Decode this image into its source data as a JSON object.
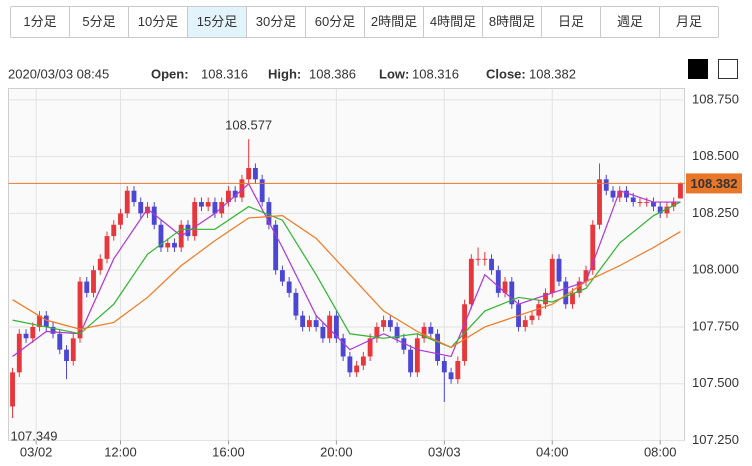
{
  "buttons": [
    "1分足",
    "5分足",
    "10分足",
    "15分足",
    "30分足",
    "60分足",
    "2時間足",
    "4時間足",
    "8時間足",
    "日足",
    "週足",
    "月足"
  ],
  "selected_button": 3,
  "header": {
    "datetime": "2020/03/03 08:45",
    "open_label": "Open:",
    "open": "108.316",
    "high_label": "High:",
    "high": "108.386",
    "low_label": "Low:",
    "low": "108.316",
    "close_label": "Close:",
    "close": "108.382"
  },
  "chart_data": {
    "type": "candlestick",
    "up_color": "#e8373c",
    "down_color": "#4b46d4",
    "open": [
      107.4,
      107.55,
      107.72,
      107.7,
      107.75,
      107.8,
      107.75,
      107.72,
      107.65,
      107.6,
      107.7,
      107.95,
      107.9,
      108.0,
      108.05,
      108.15,
      108.2,
      108.25,
      108.35,
      108.3,
      108.25,
      108.28,
      108.2,
      108.1,
      108.12,
      108.1,
      108.2,
      108.15,
      108.3,
      108.28,
      108.3,
      108.25,
      108.3,
      108.35,
      108.32,
      108.4,
      108.45,
      108.4,
      108.3,
      108.2,
      108.0,
      107.95,
      107.9,
      107.8,
      107.75,
      107.78,
      107.75,
      107.7,
      107.8,
      107.7,
      107.62,
      107.55,
      107.58,
      107.62,
      107.7,
      107.75,
      107.78,
      107.75,
      107.7,
      107.65,
      107.55,
      107.7,
      107.75,
      107.72,
      107.6,
      107.55,
      107.52,
      107.6,
      107.85,
      108.05,
      108.05,
      108.05,
      108.0,
      107.9,
      107.95,
      107.85,
      107.75,
      107.78,
      107.8,
      107.85,
      107.9,
      108.05,
      107.95,
      107.85,
      107.9,
      107.95,
      108.0,
      108.2,
      108.4,
      108.35,
      108.32,
      108.35,
      108.32,
      108.3,
      108.3,
      108.3,
      108.28,
      108.25,
      108.28,
      108.316
    ],
    "high": [
      107.57,
      107.74,
      107.74,
      107.77,
      107.82,
      107.82,
      107.77,
      107.74,
      107.67,
      107.72,
      107.97,
      107.97,
      108.02,
      108.07,
      108.17,
      108.22,
      108.27,
      108.37,
      108.37,
      108.32,
      108.3,
      108.3,
      108.22,
      108.14,
      108.14,
      108.22,
      108.22,
      108.32,
      108.32,
      108.32,
      108.32,
      108.32,
      108.37,
      108.37,
      108.42,
      108.577,
      108.47,
      108.42,
      108.32,
      108.22,
      108.02,
      107.97,
      107.92,
      107.82,
      107.8,
      107.8,
      107.77,
      107.82,
      107.82,
      107.72,
      107.64,
      107.6,
      107.64,
      107.72,
      107.77,
      107.8,
      107.8,
      107.77,
      107.72,
      107.67,
      107.72,
      107.77,
      107.77,
      107.74,
      107.62,
      107.57,
      107.62,
      107.87,
      108.07,
      108.1,
      108.08,
      108.07,
      108.02,
      107.97,
      107.97,
      107.87,
      107.8,
      107.82,
      107.87,
      107.92,
      108.07,
      108.07,
      107.97,
      107.92,
      107.97,
      108.02,
      108.22,
      108.47,
      108.42,
      108.37,
      108.37,
      108.37,
      108.34,
      108.32,
      108.32,
      108.32,
      108.3,
      108.3,
      108.32,
      108.386
    ],
    "low": [
      107.349,
      107.53,
      107.68,
      107.68,
      107.73,
      107.73,
      107.7,
      107.63,
      107.52,
      107.58,
      107.68,
      107.88,
      107.88,
      107.98,
      108.03,
      108.13,
      108.18,
      108.23,
      108.28,
      108.23,
      108.23,
      108.18,
      108.08,
      108.08,
      108.08,
      108.08,
      108.13,
      108.13,
      108.26,
      108.26,
      108.23,
      108.23,
      108.28,
      108.3,
      108.3,
      108.38,
      108.38,
      108.28,
      108.18,
      107.98,
      107.93,
      107.88,
      107.78,
      107.73,
      107.73,
      107.73,
      107.68,
      107.68,
      107.68,
      107.6,
      107.53,
      107.53,
      107.56,
      107.6,
      107.68,
      107.73,
      107.73,
      107.68,
      107.63,
      107.53,
      107.53,
      107.68,
      107.7,
      107.58,
      107.42,
      107.5,
      107.5,
      107.58,
      107.83,
      108.02,
      108.02,
      107.98,
      107.88,
      107.88,
      107.83,
      107.73,
      107.73,
      107.76,
      107.78,
      107.83,
      107.88,
      107.93,
      107.83,
      107.83,
      107.88,
      107.93,
      107.98,
      108.18,
      108.33,
      108.3,
      108.3,
      108.3,
      108.28,
      108.28,
      108.28,
      108.26,
      108.23,
      108.23,
      108.26,
      108.316
    ],
    "close": [
      107.55,
      107.72,
      107.7,
      107.75,
      107.8,
      107.75,
      107.72,
      107.65,
      107.6,
      107.7,
      107.95,
      107.9,
      108.0,
      108.05,
      108.15,
      108.2,
      108.25,
      108.35,
      108.3,
      108.25,
      108.28,
      108.2,
      108.1,
      108.12,
      108.1,
      108.2,
      108.15,
      108.3,
      108.28,
      108.3,
      108.25,
      108.3,
      108.35,
      108.32,
      108.4,
      108.45,
      108.4,
      108.3,
      108.2,
      108.0,
      107.95,
      107.9,
      107.8,
      107.75,
      107.78,
      107.75,
      107.7,
      107.8,
      107.7,
      107.62,
      107.55,
      107.58,
      107.62,
      107.7,
      107.75,
      107.78,
      107.75,
      107.7,
      107.65,
      107.55,
      107.7,
      107.75,
      107.72,
      107.6,
      107.55,
      107.52,
      107.6,
      107.85,
      108.05,
      108.05,
      108.05,
      108.0,
      107.9,
      107.95,
      107.85,
      107.75,
      107.78,
      107.8,
      107.85,
      107.9,
      108.05,
      107.95,
      107.85,
      107.9,
      107.95,
      108.0,
      108.2,
      108.4,
      108.35,
      108.32,
      108.35,
      108.32,
      108.3,
      108.3,
      108.3,
      108.28,
      108.25,
      108.28,
      108.3,
      108.382
    ],
    "lines": [
      {
        "color": "#b035d8",
        "x": [
          0,
          5,
          10,
          15,
          20,
          25,
          30,
          35,
          40,
          45,
          50,
          55,
          60,
          65,
          70,
          75,
          80,
          85,
          90,
          95,
          99
        ],
        "values": [
          107.62,
          107.73,
          107.72,
          108.05,
          108.27,
          108.15,
          108.25,
          108.38,
          108.1,
          107.8,
          107.65,
          107.72,
          107.65,
          107.62,
          107.98,
          107.85,
          107.9,
          107.95,
          108.35,
          108.3,
          108.3
        ]
      },
      {
        "color": "#2fb52f",
        "x": [
          0,
          5,
          10,
          15,
          20,
          25,
          30,
          35,
          40,
          45,
          50,
          55,
          60,
          65,
          70,
          75,
          80,
          85,
          90,
          95,
          99
        ],
        "values": [
          107.78,
          107.75,
          107.72,
          107.85,
          108.07,
          108.18,
          108.18,
          108.28,
          108.22,
          107.98,
          107.72,
          107.7,
          107.72,
          107.66,
          107.82,
          107.88,
          107.86,
          107.92,
          108.12,
          108.24,
          108.3
        ]
      },
      {
        "color": "#f07a22",
        "x": [
          0,
          5,
          10,
          15,
          20,
          25,
          30,
          35,
          40,
          45,
          50,
          55,
          60,
          65,
          70,
          75,
          80,
          85,
          90,
          95,
          99
        ],
        "values": [
          107.87,
          107.78,
          107.74,
          107.77,
          107.88,
          108.02,
          108.13,
          108.23,
          108.24,
          108.14,
          107.98,
          107.82,
          107.73,
          107.66,
          107.75,
          107.8,
          107.85,
          107.95,
          108.02,
          108.1,
          108.17
        ]
      }
    ],
    "price_line_color": "#e8772a",
    "xlim": [
      -0.6,
      99.6
    ],
    "ylim": [
      107.25,
      108.8
    ],
    "yticks": [
      {
        "value": 108.75,
        "label": "108.750"
      },
      {
        "value": 108.5,
        "label": "108.500"
      },
      {
        "value": 108.25,
        "label": "108.250"
      },
      {
        "value": 108,
        "label": "108.000"
      },
      {
        "value": 107.75,
        "label": "107.750"
      },
      {
        "value": 107.5,
        "label": "107.500"
      },
      {
        "value": 107.25,
        "label": "107.250"
      }
    ],
    "xticks": [
      {
        "value": 3.5,
        "label": "03/02"
      },
      {
        "value": 16,
        "label": "12:00"
      },
      {
        "value": 32,
        "label": "16:00"
      },
      {
        "value": 48,
        "label": "20:00"
      },
      {
        "value": 64,
        "label": "03/03"
      },
      {
        "value": 80,
        "label": "04:00"
      },
      {
        "value": 96,
        "label": "08:00"
      }
    ],
    "grid": true
  }
}
